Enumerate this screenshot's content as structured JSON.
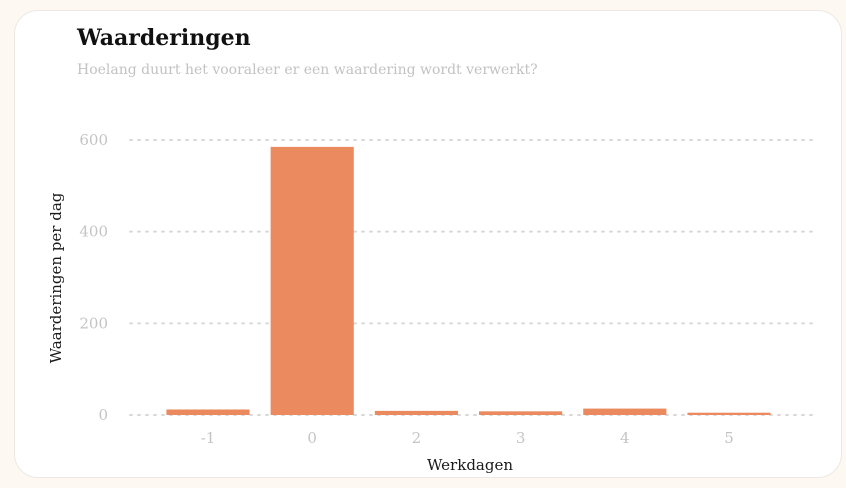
{
  "title": "Waarderingen",
  "subtitle": "Hoelang duurt het vooraleer er een waardering wordt verwerkt?",
  "chart_data": {
    "type": "bar",
    "categories": [
      "-1",
      "0",
      "2",
      "3",
      "4",
      "5"
    ],
    "values": [
      12,
      585,
      9,
      8,
      14,
      5
    ],
    "xlabel": "Werkdagen",
    "ylabel": "Waarderingen per dag",
    "ylim": [
      0,
      600
    ],
    "yticks": [
      0,
      200,
      400,
      600
    ],
    "grid": true,
    "bar_color": "#eb8a5e"
  }
}
